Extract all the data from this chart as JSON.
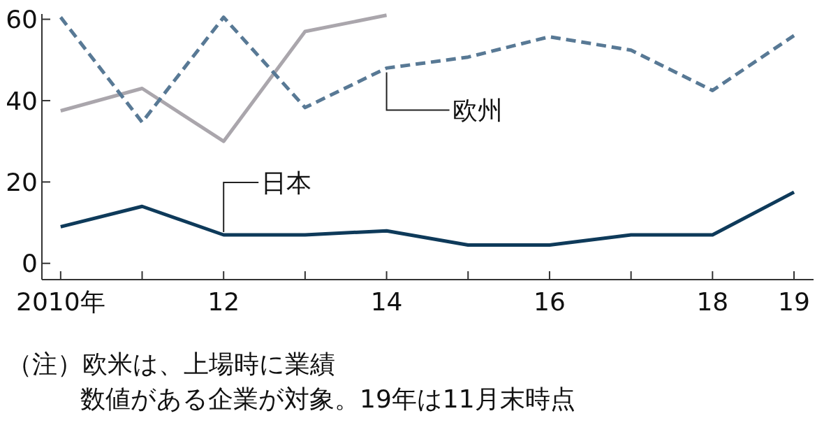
{
  "chart_data": {
    "type": "line",
    "x": [
      2010,
      2011,
      2012,
      2013,
      2014,
      2015,
      2016,
      2017,
      2018,
      2019
    ],
    "series": [
      {
        "color": "#aaa6ac",
        "values": [
          37.5,
          43,
          30,
          57,
          61,
          null,
          null,
          null,
          null,
          null
        ]
      },
      {
        "name": "欧州",
        "color": "#587995",
        "line_style": "dashed",
        "values": [
          60.5,
          34.7,
          60.5,
          38.3,
          48,
          50.7,
          55.7,
          52.4,
          42.5,
          56
        ]
      },
      {
        "name": "日本",
        "color": "#0e3a5a",
        "values": [
          9,
          14,
          7,
          7,
          8,
          4.5,
          4.5,
          7,
          7,
          17.5
        ]
      }
    ],
    "xlim": [
      2009.77,
      2019.24
    ],
    "ylim": [
      -4,
      61.3
    ],
    "xticks": [
      {
        "value": 2010,
        "label": "2010年"
      },
      {
        "value": 2011,
        "label": null
      },
      {
        "value": 2012,
        "label": "12"
      },
      {
        "value": 2013,
        "label": null
      },
      {
        "value": 2014,
        "label": "14"
      },
      {
        "value": 2015,
        "label": null
      },
      {
        "value": 2016,
        "label": "16"
      },
      {
        "value": 2017,
        "label": null
      },
      {
        "value": 2018,
        "label": "18"
      },
      {
        "value": 2019,
        "label": "19"
      }
    ],
    "yticks": [
      0,
      20,
      40,
      60
    ],
    "annotations": [
      "（注）欧米は、上場時に業績",
      "数値がある企業が対象。19年は11月末時点"
    ]
  }
}
